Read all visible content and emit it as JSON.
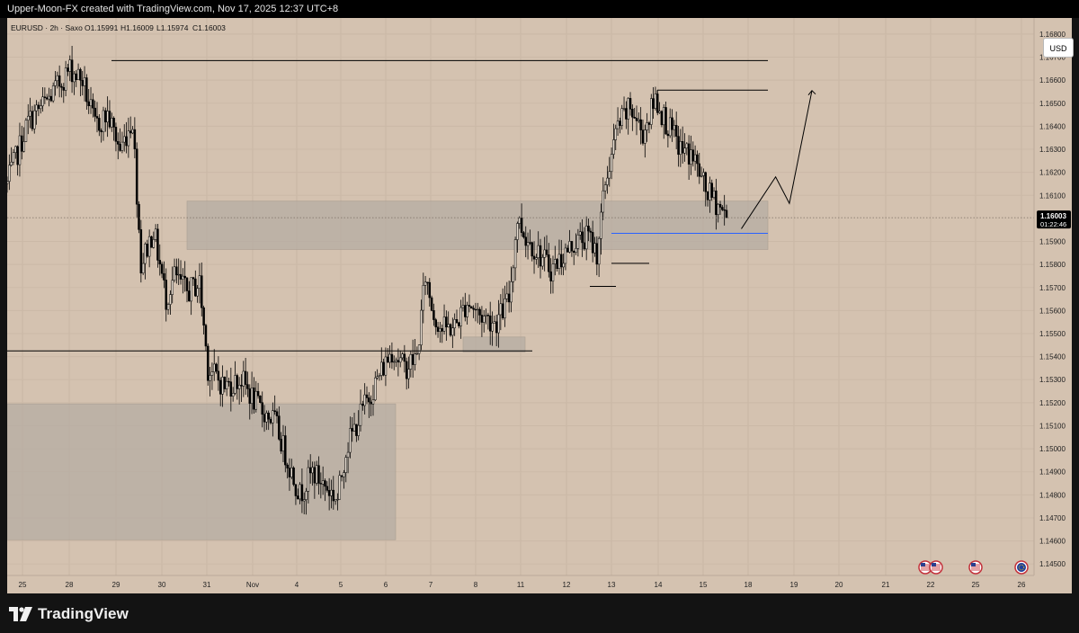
{
  "header": {
    "attribution": "Upper-Moon-FX created with TradingView.com, Nov 17, 2025 12:37 UTC+8"
  },
  "legend": {
    "symbol": "EURUSD · 2h · Saxo",
    "open": "O1.15991",
    "high": "H1.16009",
    "low": "L1.15974",
    "close": "C1.16003"
  },
  "price_scale": {
    "currency": "USD",
    "ticks": [
      "1.16800",
      "1.16700",
      "1.16600",
      "1.16500",
      "1.16400",
      "1.16300",
      "1.16200",
      "1.16100",
      "1.15900",
      "1.15800",
      "1.15700",
      "1.15600",
      "1.15500",
      "1.15400",
      "1.15300",
      "1.15200",
      "1.15100",
      "1.15000",
      "1.14900",
      "1.14800",
      "1.14700",
      "1.14600",
      "1.14500"
    ],
    "current_price": "1.16003",
    "countdown": "01:22:46"
  },
  "time_axis": {
    "labels": [
      "25",
      "28",
      "29",
      "30",
      "31",
      "Nov",
      "4",
      "5",
      "6",
      "7",
      "8",
      "11",
      "12",
      "13",
      "14",
      "15",
      "18",
      "19",
      "20",
      "21",
      "22",
      "25",
      "26"
    ]
  },
  "branding": {
    "logo_text": "TradingView"
  },
  "colors": {
    "background": "#d4c2b0",
    "zone_fill": "#b3aba3",
    "candle": "#000000",
    "blue_line": "#2962ff",
    "price_label_bg": "#000000"
  },
  "chart_data": {
    "type": "candlestick",
    "symbol": "EURUSD",
    "interval": "2h",
    "y_range": [
      1.1445,
      1.1687
    ],
    "y_scale": "linear",
    "grid": true,
    "current_close": 1.16003,
    "session_days": [
      "25",
      "28",
      "29",
      "30",
      "31",
      "Nov",
      "4",
      "5",
      "6",
      "7",
      "8",
      "11",
      "12",
      "13",
      "14",
      "15"
    ],
    "candles_per_day": 12,
    "path": [
      [
        0,
        1.1615
      ],
      [
        10,
        1.1642
      ],
      [
        20,
        1.1652
      ],
      [
        30,
        1.1665
      ],
      [
        36,
        1.166
      ],
      [
        42,
        1.164
      ],
      [
        48,
        1.1645
      ],
      [
        54,
        1.163
      ],
      [
        60,
        1.1643
      ],
      [
        64,
        1.158
      ],
      [
        70,
        1.1595
      ],
      [
        76,
        1.1565
      ],
      [
        80,
        1.1575
      ],
      [
        86,
        1.1568
      ],
      [
        92,
        1.1572
      ],
      [
        96,
        1.1535
      ],
      [
        104,
        1.1527
      ],
      [
        112,
        1.153
      ],
      [
        120,
        1.1518
      ],
      [
        128,
        1.1512
      ],
      [
        134,
        1.1495
      ],
      [
        140,
        1.148
      ],
      [
        146,
        1.149
      ],
      [
        152,
        1.1484
      ],
      [
        158,
        1.1478
      ],
      [
        162,
        1.15
      ],
      [
        170,
        1.1517
      ],
      [
        178,
        1.1532
      ],
      [
        184,
        1.1543
      ],
      [
        190,
        1.1535
      ],
      [
        196,
        1.154
      ],
      [
        200,
        1.1575
      ],
      [
        204,
        1.1558
      ],
      [
        208,
        1.1552
      ],
      [
        214,
        1.1553
      ],
      [
        220,
        1.1564
      ],
      [
        226,
        1.1558
      ],
      [
        234,
        1.1555
      ],
      [
        240,
        1.1565
      ],
      [
        244,
        1.16
      ],
      [
        248,
        1.1592
      ],
      [
        254,
        1.1585
      ],
      [
        260,
        1.1578
      ],
      [
        266,
        1.1584
      ],
      [
        272,
        1.159
      ],
      [
        278,
        1.1592
      ],
      [
        282,
        1.1585
      ],
      [
        286,
        1.1615
      ],
      [
        292,
        1.164
      ],
      [
        298,
        1.1648
      ],
      [
        304,
        1.1637
      ],
      [
        310,
        1.1652
      ],
      [
        316,
        1.164
      ],
      [
        322,
        1.163
      ],
      [
        328,
        1.1627
      ],
      [
        334,
        1.1612
      ],
      [
        340,
        1.1606
      ],
      [
        344,
        1.16003
      ]
    ],
    "zones": [
      {
        "from_day": "30",
        "to_day": "18",
        "price_low": 1.15865,
        "price_high": 1.16075
      },
      {
        "from_day": "7",
        "to_day": "11",
        "price_low": 1.1542,
        "price_high": 1.15485
      },
      {
        "from_day": "25",
        "to_day": "6",
        "price_low": 1.14605,
        "price_high": 1.15195
      }
    ],
    "levels": [
      {
        "price": 1.16685,
        "from_day": "28",
        "to_day": "18",
        "color": "#000000"
      },
      {
        "price": 1.16557,
        "from_day": "14",
        "to_day": "18",
        "color": "#000000"
      },
      {
        "price": 1.15425,
        "from_day": "25",
        "to_day": "11",
        "color": "#000000"
      },
      {
        "price": 1.15935,
        "from_day": "13",
        "to_day": "18",
        "color": "#2962ff"
      },
      {
        "price": 1.15805,
        "from_day": "13",
        "to_day": "14",
        "color": "#000000"
      },
      {
        "price": 1.15705,
        "from_day": "12",
        "to_day": "13",
        "color": "#000000"
      }
    ],
    "projection": [
      {
        "day": 15.85,
        "price": 1.15955
      },
      {
        "day": 16.6,
        "price": 1.1618
      },
      {
        "day": 16.9,
        "price": 1.16065
      },
      {
        "day": 17.4,
        "price": 1.16555
      }
    ],
    "events": [
      {
        "day": 20,
        "icons": [
          "us-flag-icon",
          "us-flag-icon"
        ]
      },
      {
        "day": 21,
        "icons": [
          "us-flag-icon"
        ]
      },
      {
        "day": 22,
        "icons": [
          "eu-flag-icon"
        ]
      }
    ]
  }
}
